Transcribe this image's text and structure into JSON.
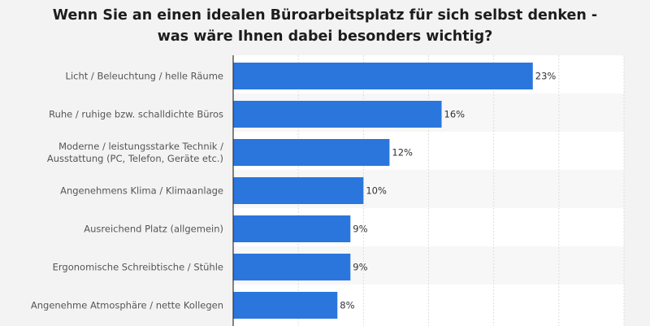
{
  "chart_data": {
    "type": "bar",
    "orientation": "horizontal",
    "title": "Wenn Sie an einen idealen Büroarbeitsplatz für sich selbst denken - was wäre Ihnen dabei besonders wichtig?",
    "title_lines": [
      "Wenn Sie an einen idealen Büroarbeitsplatz für sich selbst denken -",
      "was wäre Ihnen dabei besonders wichtig?"
    ],
    "categories": [
      [
        "Licht / Beleuchtung / helle Räume"
      ],
      [
        "Ruhe / ruhige bzw. schalldichte Büros"
      ],
      [
        "Moderne / leistungsstarke Technik /",
        "Ausstattung (PC, Telefon, Geräte etc.)"
      ],
      [
        "Angenehmens Klima / Klimaanlage"
      ],
      [
        "Ausreichend Platz (allgemein)"
      ],
      [
        "Ergonomische Schreibtische / Stühle"
      ],
      [
        "Angenehme Atmosphäre / nette Kollegen"
      ]
    ],
    "values": [
      23,
      16,
      12,
      10,
      9,
      9,
      8
    ],
    "value_labels": [
      "23%",
      "16%",
      "12%",
      "10%",
      "9%",
      "9%",
      "8%"
    ],
    "xlim": [
      0,
      30
    ],
    "grid": true,
    "bar_color": "#2a76dd"
  }
}
